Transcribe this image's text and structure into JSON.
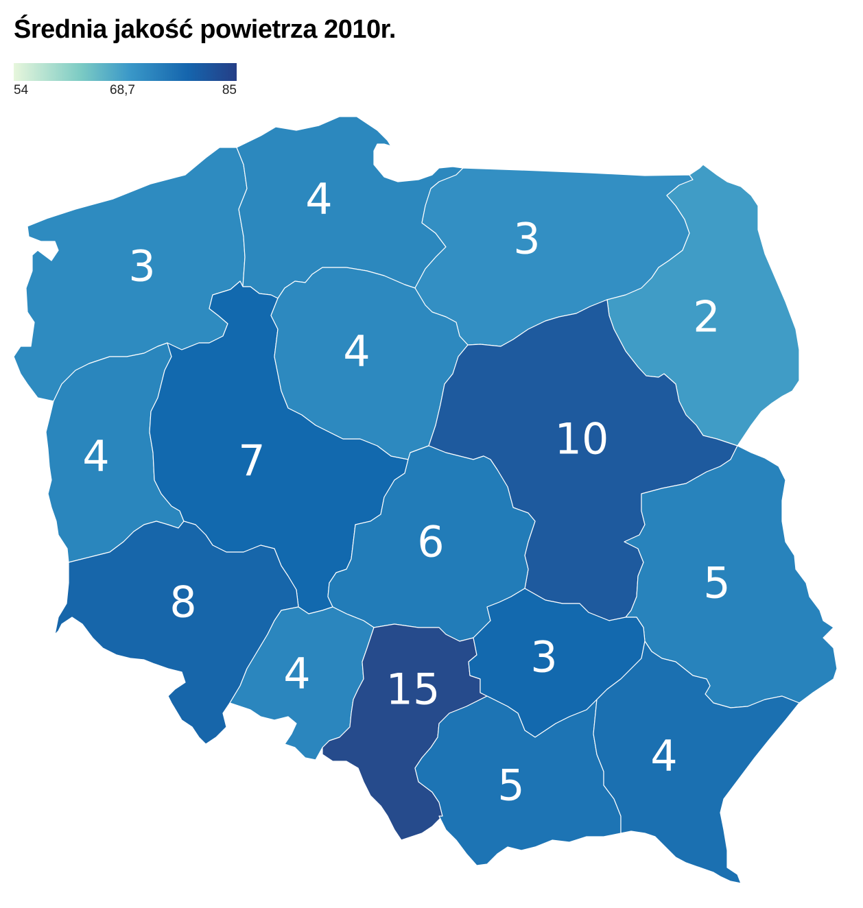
{
  "title": "Średnia jakość powietrza 2010r.",
  "legend": {
    "min_label": "54",
    "mid_label": "68,7",
    "max_label": "85",
    "colors": [
      "#e7f6dc",
      "#7ccbc4",
      "#3a98c8",
      "#1565ad",
      "#253e86"
    ]
  },
  "regions": [
    {
      "id": "zachodniopomorskie",
      "value": "3",
      "color": "#2e8bc0"
    },
    {
      "id": "pomorskie",
      "value": "4",
      "color": "#2c88be"
    },
    {
      "id": "warminsko-mazurskie",
      "value": "3",
      "color": "#338fc3"
    },
    {
      "id": "podlaskie",
      "value": "2",
      "color": "#409cc6"
    },
    {
      "id": "lubuskie",
      "value": "4",
      "color": "#2a86bd"
    },
    {
      "id": "wielkopolskie",
      "value": "7",
      "color": "#1269ae"
    },
    {
      "id": "kujawsko-pomorskie",
      "value": "4",
      "color": "#2d89bf"
    },
    {
      "id": "mazowieckie",
      "value": "10",
      "color": "#1e5a9e"
    },
    {
      "id": "lodzkie",
      "value": "6",
      "color": "#227cb8"
    },
    {
      "id": "lubelskie",
      "value": "5",
      "color": "#2883bc"
    },
    {
      "id": "dolnoslaskie",
      "value": "8",
      "color": "#1766aa"
    },
    {
      "id": "opolskie",
      "value": "4",
      "color": "#2b86be"
    },
    {
      "id": "slaskie",
      "value": "15",
      "color": "#264b8c"
    },
    {
      "id": "swietokrzyskie",
      "value": "3",
      "color": "#1369ae"
    },
    {
      "id": "malopolskie",
      "value": "5",
      "color": "#1d74b4"
    },
    {
      "id": "podkarpackie",
      "value": "4",
      "color": "#1b70b1"
    }
  ]
}
